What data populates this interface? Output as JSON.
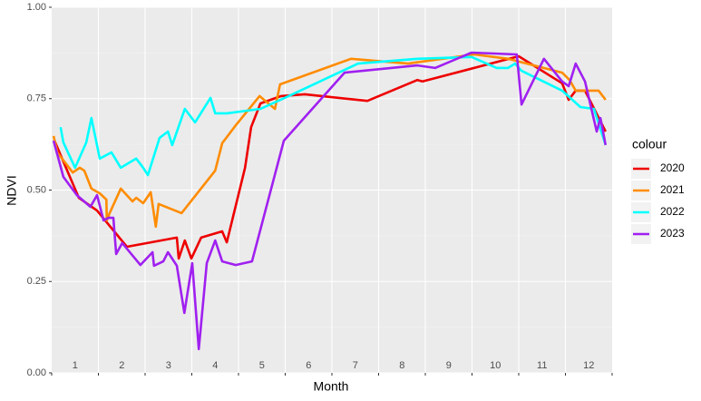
{
  "chart_data": {
    "type": "line",
    "x_label": "Month",
    "y_label": "NDVI",
    "legend_title": "colour",
    "legend_position": "right",
    "grid": true,
    "xlim": [
      1,
      13
    ],
    "xticks": [
      {
        "value": 1.5,
        "label": "1"
      },
      {
        "value": 2.5,
        "label": "2"
      },
      {
        "value": 3.5,
        "label": "3"
      },
      {
        "value": 4.5,
        "label": "4"
      },
      {
        "value": 5.5,
        "label": "5"
      },
      {
        "value": 6.5,
        "label": "6"
      },
      {
        "value": 7.5,
        "label": "7"
      },
      {
        "value": 8.5,
        "label": "8"
      },
      {
        "value": 9.5,
        "label": "9"
      },
      {
        "value": 10.5,
        "label": "10"
      },
      {
        "value": 11.5,
        "label": "11"
      },
      {
        "value": 12.5,
        "label": "12"
      }
    ],
    "ylim": [
      0,
      1
    ],
    "yticks": [
      {
        "value": 0,
        "label": "0.00"
      },
      {
        "value": 0.25,
        "label": "0.25"
      },
      {
        "value": 0.5,
        "label": "0.50"
      },
      {
        "value": 0.75,
        "label": "0.75"
      },
      {
        "value": 1,
        "label": "1.00"
      }
    ],
    "series": [
      {
        "name": "2020",
        "color": "#ee0000",
        "x": [
          1.06,
          1.58,
          1.97,
          2.61,
          3.68,
          3.72,
          3.85,
          3.99,
          4.2,
          4.65,
          4.75,
          5.14,
          5.27,
          5.47,
          5.91,
          6.42,
          7.76,
          8.83,
          8.94,
          11.0,
          11.93,
          12.07,
          12.22,
          12.42,
          12.86
        ],
        "values": [
          0.635,
          0.479,
          0.444,
          0.345,
          0.37,
          0.313,
          0.362,
          0.313,
          0.37,
          0.387,
          0.357,
          0.561,
          0.672,
          0.737,
          0.757,
          0.762,
          0.744,
          0.801,
          0.797,
          0.866,
          0.792,
          0.747,
          0.772,
          0.772,
          0.66
        ]
      },
      {
        "name": "2021",
        "color": "#ff8c00",
        "x": [
          1.04,
          1.12,
          1.45,
          1.6,
          1.7,
          1.85,
          2.03,
          2.17,
          2.18,
          2.24,
          2.48,
          2.73,
          2.81,
          2.96,
          3.12,
          3.23,
          3.29,
          3.78,
          4.5,
          4.65,
          4.94,
          5.45,
          5.78,
          5.89,
          7.41,
          8.63,
          10.05,
          10.77,
          11.93,
          12.09,
          12.22,
          12.71,
          12.86
        ],
        "values": [
          0.648,
          0.603,
          0.548,
          0.561,
          0.553,
          0.504,
          0.491,
          0.474,
          0.417,
          0.437,
          0.504,
          0.469,
          0.479,
          0.464,
          0.494,
          0.4,
          0.462,
          0.437,
          0.553,
          0.628,
          0.677,
          0.757,
          0.722,
          0.789,
          0.859,
          0.846,
          0.871,
          0.859,
          0.821,
          0.801,
          0.772,
          0.772,
          0.747
        ]
      },
      {
        "name": "2022",
        "color": "#00ffff",
        "x": [
          1.19,
          1.25,
          1.5,
          1.74,
          1.85,
          2.03,
          2.28,
          2.48,
          2.81,
          2.96,
          3.06,
          3.31,
          3.49,
          3.58,
          3.85,
          4.07,
          4.4,
          4.5,
          4.75,
          5.47,
          6.11,
          7.56,
          8.83,
          9.99,
          10.53,
          10.77,
          10.92,
          11.06,
          11.93,
          12.32,
          12.61,
          12.86
        ],
        "values": [
          0.672,
          0.63,
          0.561,
          0.63,
          0.697,
          0.586,
          0.603,
          0.561,
          0.586,
          0.561,
          0.541,
          0.643,
          0.66,
          0.623,
          0.722,
          0.685,
          0.752,
          0.71,
          0.71,
          0.722,
          0.759,
          0.846,
          0.859,
          0.864,
          0.834,
          0.834,
          0.846,
          0.826,
          0.772,
          0.727,
          0.722,
          0.623
        ]
      },
      {
        "name": "2023",
        "color": "#a020f0",
        "x": [
          1.04,
          1.25,
          1.54,
          1.83,
          1.97,
          2.11,
          2.22,
          2.32,
          2.38,
          2.51,
          2.9,
          3.16,
          3.19,
          3.39,
          3.49,
          3.68,
          3.84,
          4.01,
          4.15,
          4.32,
          4.5,
          4.65,
          4.94,
          5.29,
          5.97,
          7.27,
          8.83,
          9.21,
          9.99,
          10.96,
          11.06,
          11.54,
          11.93,
          12.07,
          12.22,
          12.42,
          12.67,
          12.75,
          12.86
        ],
        "values": [
          0.635,
          0.536,
          0.486,
          0.454,
          0.486,
          0.417,
          0.424,
          0.424,
          0.325,
          0.355,
          0.295,
          0.33,
          0.293,
          0.305,
          0.33,
          0.293,
          0.164,
          0.3,
          0.065,
          0.3,
          0.362,
          0.305,
          0.295,
          0.305,
          0.635,
          0.821,
          0.841,
          0.834,
          0.876,
          0.871,
          0.734,
          0.859,
          0.797,
          0.784,
          0.846,
          0.797,
          0.66,
          0.697,
          0.623
        ]
      }
    ]
  }
}
